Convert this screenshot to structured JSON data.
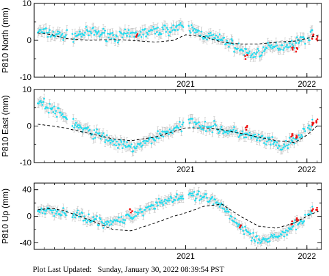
{
  "colors": {
    "observed": "#22ddf0",
    "rapid": "#ee1111",
    "errorbar": "#c2c2c2",
    "model": "#000000",
    "frame": "#000000"
  },
  "footer": {
    "label": "Plot Last Updated:",
    "value": "Sunday, January 30, 2022 08:39:54 PST"
  },
  "chart_data": [
    {
      "type": "scatter",
      "ylabel": "P810 North (mm)",
      "ylim": [
        -10,
        10
      ],
      "yticks": [
        -10,
        0,
        10
      ],
      "xlim": [
        2019.75,
        2022.12
      ],
      "xticks": [
        {
          "value": 2021.0,
          "label": "2021"
        },
        {
          "value": 2022.0,
          "label": "2022"
        }
      ],
      "series": [
        {
          "role": "observed",
          "x": [
            2019.78,
            2019.85,
            2019.95,
            2020.05,
            2020.15,
            2020.25,
            2020.35,
            2020.45,
            2020.55,
            2020.65,
            2020.75,
            2020.85,
            2020.95,
            2021.05,
            2021.15,
            2021.25,
            2021.35,
            2021.45,
            2021.55,
            2021.62,
            2021.7,
            2021.8,
            2021.9,
            2022.0,
            2022.05
          ],
          "y": [
            2.5,
            2.0,
            1.5,
            1.0,
            1.8,
            2.2,
            1.5,
            1.0,
            1.5,
            2.0,
            2.5,
            3.0,
            3.5,
            3.0,
            1.5,
            0.5,
            -0.5,
            -2.5,
            -4.0,
            -3.0,
            -2.0,
            -1.5,
            -0.5,
            0.5,
            2.0
          ]
        },
        {
          "role": "rapid",
          "x": [
            2020.6,
            2021.5,
            2021.88,
            2021.92,
            2022.05,
            2022.08
          ],
          "y": [
            1.5,
            -4.5,
            -2.0,
            -2.5,
            1.0,
            0.5
          ]
        },
        {
          "role": "model",
          "x": [
            2019.78,
            2019.9,
            2020.0,
            2020.2,
            2020.4,
            2020.55,
            2020.75,
            2020.9,
            2021.0,
            2021.15,
            2021.3,
            2021.45,
            2021.6,
            2021.75,
            2021.9,
            2022.0,
            2022.1
          ],
          "y": [
            2.0,
            1.5,
            0.5,
            0.0,
            0.2,
            0.0,
            -0.5,
            0.0,
            1.5,
            1.0,
            -0.5,
            -1.0,
            -1.0,
            -0.5,
            -0.2,
            0.5,
            1.5
          ]
        }
      ]
    },
    {
      "type": "scatter",
      "ylabel": "P810 East (mm)",
      "ylim": [
        -10,
        10
      ],
      "yticks": [
        -10,
        0,
        10
      ],
      "xlim": [
        2019.75,
        2022.12
      ],
      "xticks": [
        {
          "value": 2021.0,
          "label": "2021"
        },
        {
          "value": 2022.0,
          "label": "2022"
        }
      ],
      "series": [
        {
          "role": "observed",
          "x": [
            2019.78,
            2019.85,
            2019.95,
            2020.05,
            2020.15,
            2020.25,
            2020.35,
            2020.45,
            2020.55,
            2020.65,
            2020.75,
            2020.85,
            2020.95,
            2021.05,
            2021.15,
            2021.25,
            2021.35,
            2021.45,
            2021.55,
            2021.62,
            2021.7,
            2021.8,
            2021.9,
            2022.0,
            2022.05
          ],
          "y": [
            7.0,
            5.5,
            3.5,
            1.5,
            -1.0,
            -2.0,
            -3.5,
            -5.0,
            -6.0,
            -5.0,
            -3.0,
            -1.5,
            -0.5,
            1.5,
            0.0,
            -0.5,
            -1.5,
            -2.0,
            -3.0,
            -3.5,
            -4.5,
            -6.0,
            -4.0,
            -1.0,
            1.0
          ]
        },
        {
          "role": "rapid",
          "x": [
            2021.5,
            2021.88,
            2021.92,
            2022.05,
            2022.08
          ],
          "y": [
            -0.5,
            -2.5,
            -3.0,
            0.5,
            1.5
          ]
        },
        {
          "role": "model",
          "x": [
            2019.78,
            2019.9,
            2020.0,
            2020.2,
            2020.4,
            2020.55,
            2020.75,
            2020.9,
            2021.0,
            2021.15,
            2021.3,
            2021.45,
            2021.6,
            2021.75,
            2021.9,
            2022.0,
            2022.1
          ],
          "y": [
            0.5,
            0.0,
            -0.5,
            -2.0,
            -3.5,
            -4.0,
            -3.0,
            -1.5,
            -0.5,
            -0.5,
            -1.0,
            -2.0,
            -3.0,
            -4.0,
            -4.5,
            -2.5,
            0.5
          ]
        }
      ]
    },
    {
      "type": "scatter",
      "ylabel": "P810 Up (mm)",
      "ylim": [
        -50,
        50
      ],
      "yticks": [
        -40,
        0,
        40
      ],
      "xlim": [
        2019.75,
        2022.12
      ],
      "xticks": [
        {
          "value": 2021.0,
          "label": "2021"
        },
        {
          "value": 2022.0,
          "label": "2022"
        }
      ],
      "series": [
        {
          "role": "observed",
          "x": [
            2019.78,
            2019.85,
            2019.95,
            2020.05,
            2020.15,
            2020.25,
            2020.35,
            2020.45,
            2020.55,
            2020.65,
            2020.75,
            2020.85,
            2020.95,
            2021.05,
            2021.15,
            2021.25,
            2021.35,
            2021.45,
            2021.55,
            2021.62,
            2021.7,
            2021.8,
            2021.9,
            2022.0,
            2022.05
          ],
          "y": [
            5,
            8,
            6,
            3,
            0,
            -5,
            -10,
            -8,
            0,
            10,
            18,
            25,
            28,
            30,
            28,
            20,
            5,
            -15,
            -30,
            -35,
            -33,
            -28,
            -15,
            0,
            8
          ]
        },
        {
          "role": "rapid",
          "x": [
            2020.55,
            2021.45,
            2021.88,
            2021.92,
            2022.05,
            2022.08
          ],
          "y": [
            8,
            -15,
            -10,
            -5,
            8,
            10
          ]
        },
        {
          "role": "model",
          "x": [
            2019.78,
            2019.9,
            2020.0,
            2020.2,
            2020.4,
            2020.55,
            2020.75,
            2020.9,
            2021.0,
            2021.15,
            2021.3,
            2021.45,
            2021.6,
            2021.75,
            2021.9,
            2022.0,
            2022.1
          ],
          "y": [
            10,
            12,
            8,
            -5,
            -20,
            -22,
            -10,
            0,
            5,
            15,
            18,
            0,
            -15,
            -18,
            -10,
            0,
            8
          ]
        }
      ]
    }
  ]
}
